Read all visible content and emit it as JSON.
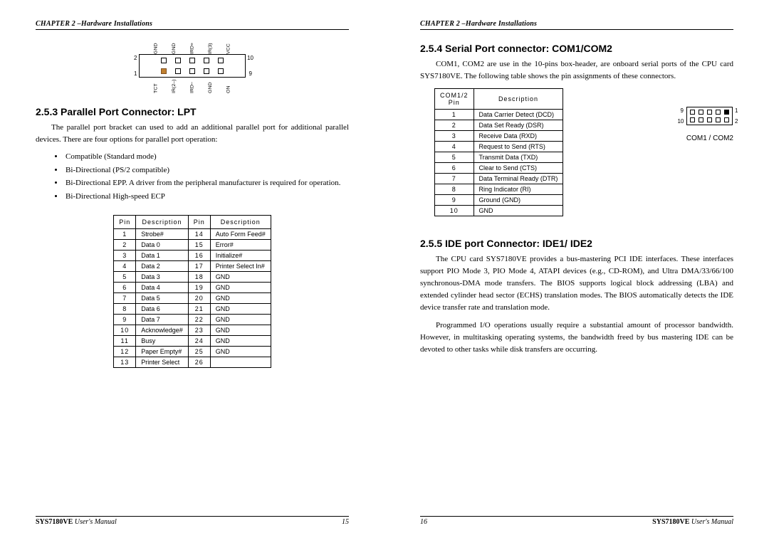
{
  "running_head": "CHAPTER 2 –Hardware Installations",
  "footer_manual_model": "SYS7180VE",
  "footer_manual_suffix": "User's Manual",
  "page_left_num": "15",
  "page_right_num": "16",
  "left": {
    "header_pins_top_labels": [
      "GND",
      "GND",
      "IRD+",
      "IR(3)",
      "VCC"
    ],
    "header_pins_bot_labels": [
      "TCT",
      "IR(2–)",
      "IRD–",
      "GND",
      "ON"
    ],
    "header_corner_nums": {
      "tl": "2",
      "tr": "10",
      "bl": "1",
      "br": "9"
    },
    "sec253_title": "2.5.3  Parallel Port Connector: LPT",
    "sec253_p1": "The parallel port bracket can used to add an additional parallel port for additional parallel devices. There are four options for parallel port operation:",
    "sec253_bullets": [
      "Compatible (Standard mode)",
      "Bi-Directional (PS/2 compatible)",
      "Bi-Directional EPP. A driver from the peripheral manufacturer is required for operation.",
      "Bi-Directional High-speed ECP"
    ],
    "lpt_table": {
      "headers": [
        "Pin",
        "Description",
        "Pin",
        "Description"
      ],
      "rows": [
        [
          "1",
          "Strobe#",
          "14",
          "Auto Form Feed#"
        ],
        [
          "2",
          "Data 0",
          "15",
          "Error#"
        ],
        [
          "3",
          "Data 1",
          "16",
          "Initialize#"
        ],
        [
          "4",
          "Data 2",
          "17",
          "Printer Select In#"
        ],
        [
          "5",
          "Data 3",
          "18",
          "GND"
        ],
        [
          "6",
          "Data 4",
          "19",
          "GND"
        ],
        [
          "7",
          "Data 5",
          "20",
          "GND"
        ],
        [
          "8",
          "Data 6",
          "21",
          "GND"
        ],
        [
          "9",
          "Data 7",
          "22",
          "GND"
        ],
        [
          "10",
          "Acknowledge#",
          "23",
          "GND"
        ],
        [
          "11",
          "Busy",
          "24",
          "GND"
        ],
        [
          "12",
          "Paper Empty#",
          "25",
          "GND"
        ],
        [
          "13",
          "Printer Select",
          "26",
          ""
        ]
      ]
    }
  },
  "right": {
    "sec254_title": "2.5.4  Serial Port connector: COM1/COM2",
    "sec254_p1": "COM1, COM2 are use in the 10-pins box-header, are onboard serial ports of the CPU card SYS7180VE. The following table shows the pin assignments of these connectors.",
    "com_table": {
      "headers": [
        "COM1/2 Pin",
        "Description"
      ],
      "rows": [
        [
          "1",
          "Data Carrier Detect (DCD)"
        ],
        [
          "2",
          "Data Set Ready (DSR)"
        ],
        [
          "3",
          "Receive Data (RXD)"
        ],
        [
          "4",
          "Request to Send (RTS)"
        ],
        [
          "5",
          "Transmit Data (TXD)"
        ],
        [
          "6",
          "Clear to Send (CTS)"
        ],
        [
          "7",
          "Data Terminal Ready (DTR)"
        ],
        [
          "8",
          "Ring Indicator (RI)"
        ],
        [
          "9",
          "Ground (GND)"
        ],
        [
          "10",
          "GND"
        ]
      ]
    },
    "com_diagram_nums": {
      "tl": "9",
      "tr": "1",
      "bl": "10",
      "br": "2"
    },
    "com_diagram_label": "COM1 / COM2",
    "sec255_title": "2.5.5  IDE port Connector: IDE1/ IDE2",
    "sec255_p1": "The CPU card SYS7180VE provides a bus-mastering PCI IDE interfaces. These interfaces support PIO Mode 3, PIO Mode 4, ATAPI devices (e.g., CD-ROM), and Ultra DMA/33/66/100 synchronous-DMA mode transfers. The BIOS supports logical block addressing (LBA) and extended cylinder head sector (ECHS) translation modes. The BIOS automatically detects the IDE device transfer rate and translation mode.",
    "sec255_p2": "Programmed I/O operations usually require a substantial amount of processor bandwidth. However, in multitasking operating systems, the bandwidth freed by bus mastering IDE can be devoted to other tasks while disk transfers are occurring."
  }
}
